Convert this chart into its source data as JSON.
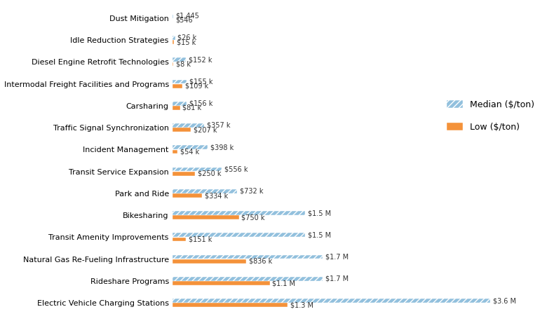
{
  "categories": [
    "Electric Vehicle Charging Stations",
    "Rideshare Programs",
    "Natural Gas Re-Fueling Infrastructure",
    "Transit Amenity Improvements",
    "Bikesharing",
    "Park and Ride",
    "Transit Service Expansion",
    "Incident Management",
    "Traffic Signal Synchronization",
    "Carsharing",
    "Intermodal Freight Facilities and Programs",
    "Diesel Engine Retrofit Technologies",
    "Idle Reduction Strategies",
    "Dust Mitigation"
  ],
  "median_values": [
    3600000,
    1700000,
    1700000,
    1500000,
    1500000,
    732000,
    556000,
    398000,
    357000,
    156000,
    155000,
    152000,
    26000,
    1445
  ],
  "low_values": [
    1300000,
    1100000,
    836000,
    151000,
    750000,
    334000,
    250000,
    54000,
    207000,
    81000,
    109000,
    8000,
    15000,
    546
  ],
  "median_labels": [
    "$3.6 M",
    "$1.7 M",
    "$1.7 M",
    "$1.5 M",
    "$1.5 M",
    "$732 k",
    "$556 k",
    "$398 k",
    "$357 k",
    "$156 k",
    "$155 k",
    "$152 k",
    "$26 k",
    "$1,445"
  ],
  "low_labels": [
    "$1.3 M",
    "$1.1 M",
    "$836 k",
    "$151 k",
    "$750 k",
    "$334 k",
    "$250 k",
    "$54 k",
    "$207 k",
    "$81 k",
    "$109 k",
    "$8 k",
    "$15 k",
    "$546"
  ],
  "median_color": "#92C0DD",
  "low_color": "#F4923A",
  "background_color": "#ffffff",
  "bar_height": 0.18,
  "bar_gap": 0.02,
  "xlim": [
    0,
    4200000
  ],
  "legend_median": "Median ($/ton)",
  "legend_low": "Low ($/ton)",
  "label_fontsize": 7,
  "tick_fontsize": 8,
  "legend_fontsize": 9
}
